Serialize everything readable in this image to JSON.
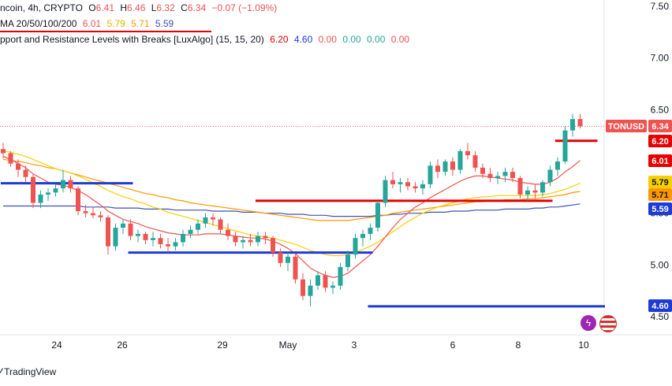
{
  "header": {
    "symbol_line": "ncoin, 4h, CRYPTO",
    "open_label": "O",
    "open": "6.41",
    "high_label": "H",
    "high": "6.46",
    "low_label": "L",
    "low": "6.32",
    "close_label": "C",
    "close": "6.34",
    "change": "−0.07 (−1.09%)"
  },
  "ma_legend": {
    "label": "MA 20/50/100/200",
    "v20": "6.01",
    "v50": "5.79",
    "v100": "5.71",
    "v200": "5.59"
  },
  "sr_legend": {
    "label": "pport and Resistance Levels with Breaks [LuxAlgo] (15, 15, 20)",
    "v1": "6.20",
    "v2": "4.60",
    "v3": "0.00",
    "v4": "0.00",
    "v5": "0.00",
    "v6": "0.00"
  },
  "footer": {
    "brand": "TradingView"
  },
  "colors": {
    "up": "#26a69a",
    "down": "#ef5350",
    "ma20": "#ef5350",
    "ma50": "#f5d000",
    "ma100": "#ff9800",
    "ma200": "#3f51b5",
    "resistance": "#e60000",
    "support": "#1e3bd6"
  },
  "chart_data": {
    "type": "candlestick",
    "symbol": "TONUSD",
    "timeframe": "4h",
    "x_ticks": [
      "24",
      "26",
      "29",
      "May",
      "3",
      "6",
      "8",
      "10"
    ],
    "y_ticks": [
      "4.50",
      "5.00",
      "5.50",
      "6.00",
      "6.50",
      "7.00",
      "7.50"
    ],
    "ylim": [
      4.4,
      7.6
    ],
    "price_labels": [
      {
        "text": "TONUSD",
        "value": 6.34
      },
      {
        "text": "6.34",
        "value": 6.34
      },
      {
        "text": "6.20",
        "value": 6.2
      },
      {
        "text": "6.01",
        "value": 6.01
      },
      {
        "text": "5.79",
        "value": 5.79
      },
      {
        "text": "5.71",
        "value": 5.71
      },
      {
        "text": "5.59",
        "value": 5.59
      },
      {
        "text": "4.60",
        "value": 4.6
      }
    ],
    "candles_ohlc": [
      [
        6.12,
        6.18,
        6.03,
        6.08
      ],
      [
        6.08,
        6.1,
        5.95,
        5.98
      ],
      [
        5.98,
        6.02,
        5.85,
        5.92
      ],
      [
        5.92,
        5.96,
        5.8,
        5.85
      ],
      [
        5.85,
        5.88,
        5.55,
        5.6
      ],
      [
        5.6,
        5.72,
        5.55,
        5.68
      ],
      [
        5.68,
        5.74,
        5.62,
        5.7
      ],
      [
        5.7,
        5.78,
        5.66,
        5.74
      ],
      [
        5.74,
        5.92,
        5.7,
        5.82
      ],
      [
        5.82,
        5.86,
        5.7,
        5.74
      ],
      [
        5.74,
        5.76,
        5.48,
        5.52
      ],
      [
        5.52,
        5.58,
        5.46,
        5.5
      ],
      [
        5.5,
        5.56,
        5.45,
        5.48
      ],
      [
        5.48,
        5.52,
        5.42,
        5.46
      ],
      [
        5.46,
        5.48,
        5.1,
        5.18
      ],
      [
        5.18,
        5.4,
        5.14,
        5.36
      ],
      [
        5.36,
        5.44,
        5.3,
        5.4
      ],
      [
        5.4,
        5.44,
        5.24,
        5.28
      ],
      [
        5.28,
        5.34,
        5.22,
        5.3
      ],
      [
        5.3,
        5.32,
        5.2,
        5.24
      ],
      [
        5.24,
        5.32,
        5.18,
        5.26
      ],
      [
        5.26,
        5.3,
        5.16,
        5.2
      ],
      [
        5.2,
        5.26,
        5.12,
        5.18
      ],
      [
        5.18,
        5.26,
        5.14,
        5.22
      ],
      [
        5.22,
        5.34,
        5.18,
        5.3
      ],
      [
        5.3,
        5.38,
        5.26,
        5.34
      ],
      [
        5.34,
        5.44,
        5.3,
        5.4
      ],
      [
        5.4,
        5.5,
        5.36,
        5.46
      ],
      [
        5.46,
        5.5,
        5.38,
        5.44
      ],
      [
        5.44,
        5.46,
        5.3,
        5.34
      ],
      [
        5.34,
        5.4,
        5.24,
        5.28
      ],
      [
        5.28,
        5.32,
        5.18,
        5.22
      ],
      [
        5.22,
        5.28,
        5.16,
        5.24
      ],
      [
        5.24,
        5.3,
        5.18,
        5.22
      ],
      [
        5.22,
        5.32,
        5.18,
        5.28
      ],
      [
        5.28,
        5.32,
        5.2,
        5.26
      ],
      [
        5.26,
        5.28,
        5.08,
        5.12
      ],
      [
        5.12,
        5.16,
        4.98,
        5.02
      ],
      [
        5.02,
        5.12,
        4.94,
        5.08
      ],
      [
        5.08,
        5.1,
        4.82,
        4.86
      ],
      [
        4.86,
        4.92,
        4.66,
        4.7
      ],
      [
        4.7,
        4.86,
        4.6,
        4.8
      ],
      [
        4.8,
        4.94,
        4.76,
        4.9
      ],
      [
        4.9,
        4.94,
        4.74,
        4.78
      ],
      [
        4.78,
        4.84,
        4.72,
        4.8
      ],
      [
        4.8,
        5.02,
        4.76,
        4.98
      ],
      [
        4.98,
        5.14,
        4.94,
        5.1
      ],
      [
        5.1,
        5.3,
        5.06,
        5.26
      ],
      [
        5.26,
        5.34,
        5.18,
        5.3
      ],
      [
        5.3,
        5.4,
        5.24,
        5.36
      ],
      [
        5.36,
        5.62,
        5.32,
        5.6
      ],
      [
        5.6,
        5.86,
        5.56,
        5.82
      ],
      [
        5.82,
        5.9,
        5.74,
        5.78
      ],
      [
        5.78,
        5.84,
        5.7,
        5.8
      ],
      [
        5.8,
        5.84,
        5.72,
        5.76
      ],
      [
        5.76,
        5.8,
        5.7,
        5.74
      ],
      [
        5.74,
        5.82,
        5.68,
        5.78
      ],
      [
        5.78,
        6.0,
        5.74,
        5.96
      ],
      [
        5.96,
        6.02,
        5.84,
        5.9
      ],
      [
        5.9,
        6.02,
        5.86,
        6.0
      ],
      [
        6.0,
        6.04,
        5.86,
        5.92
      ],
      [
        5.92,
        6.12,
        5.88,
        6.1
      ],
      [
        6.1,
        6.18,
        6.02,
        6.06
      ],
      [
        6.06,
        6.1,
        5.9,
        5.94
      ],
      [
        5.94,
        5.98,
        5.84,
        5.88
      ],
      [
        5.88,
        5.94,
        5.8,
        5.84
      ],
      [
        5.84,
        5.9,
        5.78,
        5.86
      ],
      [
        5.86,
        5.94,
        5.8,
        5.9
      ],
      [
        5.9,
        5.94,
        5.8,
        5.84
      ],
      [
        5.84,
        5.86,
        5.64,
        5.68
      ],
      [
        5.68,
        5.76,
        5.62,
        5.72
      ],
      [
        5.72,
        5.78,
        5.64,
        5.7
      ],
      [
        5.7,
        5.82,
        5.66,
        5.8
      ],
      [
        5.8,
        5.96,
        5.76,
        5.92
      ],
      [
        5.92,
        6.04,
        5.86,
        6.0
      ],
      [
        6.0,
        6.34,
        5.98,
        6.3
      ],
      [
        6.3,
        6.46,
        6.24,
        6.41
      ],
      [
        6.41,
        6.46,
        6.32,
        6.34
      ]
    ],
    "ma20": [
      6.05,
      6.02,
      5.98,
      5.94,
      5.88,
      5.84,
      5.8,
      5.78,
      5.77,
      5.75,
      5.72,
      5.68,
      5.63,
      5.58,
      5.52,
      5.48,
      5.44,
      5.42,
      5.4,
      5.37,
      5.35,
      5.33,
      5.31,
      5.3,
      5.29,
      5.29,
      5.29,
      5.3,
      5.3,
      5.3,
      5.29,
      5.28,
      5.27,
      5.26,
      5.26,
      5.25,
      5.23,
      5.2,
      5.16,
      5.11,
      5.04,
      4.97,
      4.93,
      4.9,
      4.88,
      4.89,
      4.92,
      4.98,
      5.04,
      5.1,
      5.18,
      5.27,
      5.36,
      5.44,
      5.5,
      5.56,
      5.6,
      5.65,
      5.69,
      5.73,
      5.77,
      5.81,
      5.84,
      5.86,
      5.86,
      5.85,
      5.84,
      5.83,
      5.82,
      5.8,
      5.79,
      5.78,
      5.78,
      5.8,
      5.84,
      5.9,
      5.95,
      6.01
    ],
    "ma50": [
      6.1,
      6.09,
      6.07,
      6.05,
      6.02,
      5.99,
      5.96,
      5.93,
      5.91,
      5.89,
      5.86,
      5.83,
      5.79,
      5.76,
      5.72,
      5.69,
      5.66,
      5.64,
      5.61,
      5.59,
      5.56,
      5.54,
      5.51,
      5.49,
      5.47,
      5.45,
      5.43,
      5.41,
      5.39,
      5.37,
      5.35,
      5.33,
      5.31,
      5.29,
      5.28,
      5.27,
      5.26,
      5.24,
      5.22,
      5.2,
      5.17,
      5.14,
      5.12,
      5.1,
      5.09,
      5.09,
      5.1,
      5.12,
      5.15,
      5.18,
      5.22,
      5.27,
      5.32,
      5.37,
      5.42,
      5.46,
      5.5,
      5.53,
      5.56,
      5.58,
      5.6,
      5.62,
      5.64,
      5.65,
      5.66,
      5.66,
      5.67,
      5.67,
      5.67,
      5.67,
      5.67,
      5.67,
      5.68,
      5.69,
      5.71,
      5.73,
      5.76,
      5.79
    ],
    "ma100": [
      6.02,
      6.01,
      6.0,
      5.99,
      5.97,
      5.96,
      5.94,
      5.93,
      5.91,
      5.89,
      5.87,
      5.85,
      5.83,
      5.81,
      5.79,
      5.77,
      5.75,
      5.73,
      5.71,
      5.69,
      5.68,
      5.66,
      5.65,
      5.63,
      5.62,
      5.6,
      5.59,
      5.58,
      5.57,
      5.56,
      5.55,
      5.54,
      5.53,
      5.52,
      5.51,
      5.5,
      5.49,
      5.48,
      5.47,
      5.46,
      5.45,
      5.44,
      5.43,
      5.43,
      5.43,
      5.43,
      5.43,
      5.44,
      5.45,
      5.46,
      5.47,
      5.48,
      5.5,
      5.51,
      5.52,
      5.53,
      5.54,
      5.55,
      5.56,
      5.57,
      5.58,
      5.59,
      5.6,
      5.61,
      5.61,
      5.62,
      5.62,
      5.63,
      5.63,
      5.63,
      5.64,
      5.64,
      5.65,
      5.66,
      5.67,
      5.68,
      5.7,
      5.71
    ],
    "ma200": [
      5.57,
      5.57,
      5.57,
      5.57,
      5.57,
      5.57,
      5.57,
      5.57,
      5.57,
      5.57,
      5.57,
      5.56,
      5.56,
      5.56,
      5.56,
      5.55,
      5.55,
      5.55,
      5.55,
      5.54,
      5.54,
      5.54,
      5.54,
      5.53,
      5.53,
      5.53,
      5.53,
      5.53,
      5.52,
      5.52,
      5.52,
      5.52,
      5.51,
      5.51,
      5.51,
      5.5,
      5.5,
      5.5,
      5.49,
      5.49,
      5.49,
      5.48,
      5.48,
      5.48,
      5.47,
      5.47,
      5.47,
      5.47,
      5.47,
      5.47,
      5.48,
      5.48,
      5.49,
      5.49,
      5.5,
      5.5,
      5.5,
      5.51,
      5.51,
      5.51,
      5.52,
      5.52,
      5.52,
      5.53,
      5.53,
      5.53,
      5.53,
      5.54,
      5.54,
      5.54,
      5.54,
      5.55,
      5.55,
      5.56,
      5.56,
      5.57,
      5.58,
      5.59
    ],
    "levels": [
      {
        "type": "support",
        "value": 5.79,
        "from": 0,
        "to": 17
      },
      {
        "type": "support",
        "value": 5.12,
        "from": 17,
        "to": 49
      },
      {
        "type": "support",
        "value": 4.6,
        "from": 49,
        "to": 80
      },
      {
        "type": "resistance",
        "value": 5.62,
        "from": 34,
        "to": 73
      },
      {
        "type": "resistance",
        "value": 6.2,
        "from": 74,
        "to": 79
      }
    ]
  }
}
